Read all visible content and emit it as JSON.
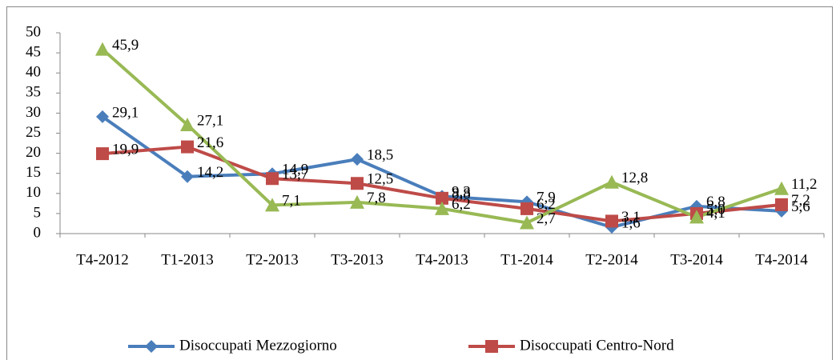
{
  "chart_data": {
    "type": "line",
    "categories": [
      "T4-2012",
      "T1-2013",
      "T2-2013",
      "T3-2013",
      "T4-2013",
      "T1-2014",
      "T2-2014",
      "T3-2014",
      "T4-2014"
    ],
    "series": [
      {
        "name": "Disoccupati Mezzogiorno",
        "color": "#4a7ebb",
        "marker": "diamond",
        "values": [
          29.1,
          14.2,
          14.9,
          18.5,
          9.3,
          7.9,
          1.6,
          6.8,
          5.6
        ],
        "value_labels": [
          "29,1",
          "14,2",
          "14,9",
          "18,5",
          "9,3",
          "7,9",
          "1,6",
          "6,8",
          "5,6"
        ]
      },
      {
        "name": "Disoccupati Centro-Nord",
        "color": "#be4b48",
        "marker": "square",
        "values": [
          19.9,
          21.6,
          13.7,
          12.5,
          8.8,
          6.2,
          3.1,
          5.0,
          7.2
        ],
        "value_labels": [
          "19,9",
          "21,6",
          "13,7",
          "12,5",
          "8,8",
          "6,2",
          "3,1",
          "5,0",
          "7,2"
        ]
      },
      {
        "color": "#98b954",
        "marker": "triangle",
        "values": [
          45.9,
          27.1,
          7.1,
          7.8,
          6.2,
          2.7,
          12.8,
          4.1,
          11.2
        ],
        "value_labels": [
          "45,9",
          "27,1",
          "7,1",
          "7,8",
          "6,2",
          "2,7",
          "12,8",
          "4,1",
          "11,2"
        ]
      }
    ],
    "ylim": [
      0,
      50
    ],
    "yticks": [
      0,
      5,
      10,
      15,
      20,
      25,
      30,
      35,
      40,
      45,
      50
    ],
    "grid": false
  }
}
